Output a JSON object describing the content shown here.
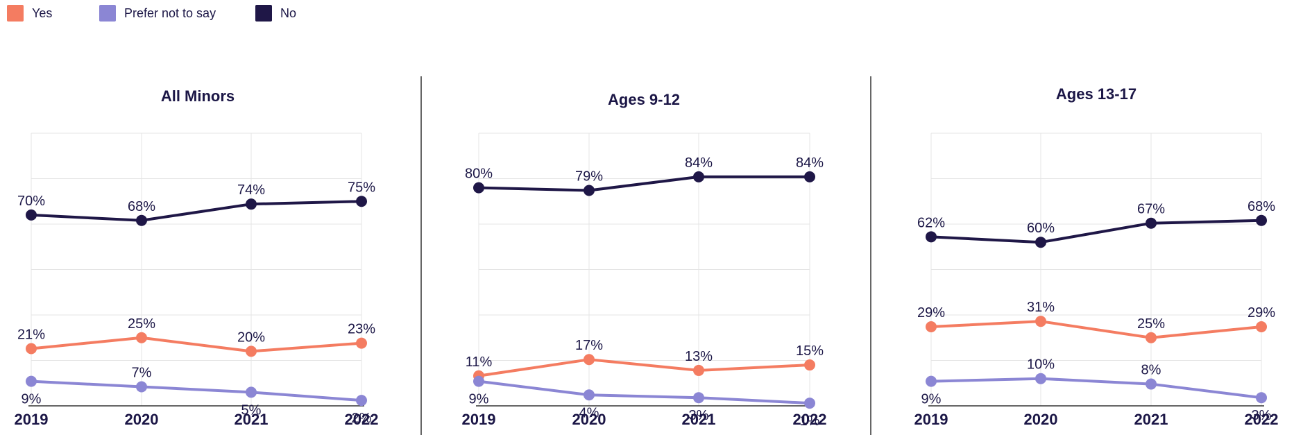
{
  "legend": [
    {
      "label": "Yes",
      "color": "#F47C61"
    },
    {
      "label": "Prefer not to say",
      "color": "#8B86D4"
    },
    {
      "label": "No",
      "color": "#1F1747"
    }
  ],
  "colors": {
    "Yes": "#F47C61",
    "Prefer not to say": "#8B86D4",
    "No": "#1F1747"
  },
  "chart_data": [
    {
      "type": "line",
      "title": "All Minors",
      "x": [
        "2019",
        "2020",
        "2021",
        "2022"
      ],
      "ylim": [
        0,
        100
      ],
      "grid": true,
      "series": [
        {
          "name": "No",
          "values": [
            70,
            68,
            74,
            75
          ]
        },
        {
          "name": "Yes",
          "values": [
            21,
            25,
            20,
            23
          ]
        },
        {
          "name": "Prefer not to say",
          "values": [
            9,
            7,
            5,
            2
          ]
        }
      ]
    },
    {
      "type": "line",
      "title": "Ages 9-12",
      "x": [
        "2019",
        "2020",
        "2021",
        "2022"
      ],
      "ylim": [
        0,
        100
      ],
      "grid": true,
      "series": [
        {
          "name": "No",
          "values": [
            80,
            79,
            84,
            84
          ]
        },
        {
          "name": "Yes",
          "values": [
            11,
            17,
            13,
            15
          ]
        },
        {
          "name": "Prefer not to say",
          "values": [
            9,
            4,
            3,
            1
          ]
        }
      ]
    },
    {
      "type": "line",
      "title": "Ages 13-17",
      "x": [
        "2019",
        "2020",
        "2021",
        "2022"
      ],
      "ylim": [
        0,
        100
      ],
      "grid": true,
      "series": [
        {
          "name": "No",
          "values": [
            62,
            60,
            67,
            68
          ]
        },
        {
          "name": "Yes",
          "values": [
            29,
            31,
            25,
            29
          ]
        },
        {
          "name": "Prefer not to say",
          "values": [
            9,
            10,
            8,
            3
          ]
        }
      ]
    }
  ]
}
